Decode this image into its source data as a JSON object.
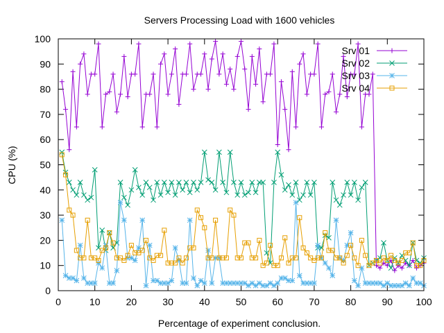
{
  "chart_data": {
    "type": "line",
    "title": "Servers Processing Load with 1600 vehicles",
    "xlabel": "Percentage of experiment conclusion.",
    "ylabel": "CPU (%)",
    "xlim": [
      0,
      100
    ],
    "ylim": [
      0,
      100
    ],
    "xticks": [
      0,
      10,
      20,
      30,
      40,
      50,
      60,
      70,
      80,
      90,
      100
    ],
    "yticks": [
      0,
      10,
      20,
      30,
      40,
      50,
      60,
      70,
      80,
      90,
      100
    ],
    "grid": false,
    "legend_position": "top-right",
    "series": [
      {
        "name": "Srv 01",
        "color": "#9400d3",
        "marker": "plus",
        "x": [
          1,
          2,
          3,
          4,
          5,
          6,
          7,
          8,
          9,
          10,
          11,
          12,
          13,
          14,
          15,
          16,
          17,
          18,
          19,
          20,
          21,
          22,
          23,
          24,
          25,
          26,
          27,
          28,
          29,
          30,
          31,
          32,
          33,
          34,
          35,
          36,
          37,
          38,
          39,
          40,
          41,
          42,
          43,
          44,
          45,
          46,
          47,
          48,
          49,
          50,
          51,
          52,
          53,
          54,
          55,
          56,
          57,
          58,
          59,
          60,
          61,
          62,
          63,
          64,
          65,
          66,
          67,
          68,
          69,
          70,
          71,
          72,
          73,
          74,
          75,
          76,
          77,
          78,
          79,
          80,
          81,
          82,
          83,
          84,
          85,
          86,
          87,
          88,
          89,
          90,
          91,
          92,
          93,
          94,
          95,
          96,
          97,
          98,
          99,
          100
        ],
        "y": [
          83,
          72,
          56,
          87,
          65,
          90,
          94,
          78,
          86,
          86,
          98,
          65,
          78,
          79,
          86,
          71,
          78,
          93,
          77,
          86,
          86,
          98,
          65,
          78,
          78,
          86,
          65,
          90,
          94,
          78,
          86,
          96,
          74,
          86,
          86,
          98,
          80,
          86,
          86,
          94,
          80,
          92,
          99,
          86,
          94,
          82,
          88,
          80,
          93,
          99,
          88,
          72,
          93,
          82,
          96,
          75,
          86,
          86,
          98,
          58,
          83,
          72,
          56,
          87,
          65,
          90,
          94,
          78,
          86,
          86,
          98,
          65,
          78,
          79,
          86,
          71,
          78,
          93,
          77,
          86,
          86,
          98,
          65,
          78,
          78,
          86,
          10,
          9,
          11,
          10,
          12,
          8,
          10,
          9,
          11,
          10,
          12,
          9,
          10,
          11
        ]
      },
      {
        "name": "Srv 02",
        "color": "#009e73",
        "marker": "x",
        "x": [
          1,
          2,
          3,
          4,
          5,
          6,
          7,
          8,
          9,
          10,
          11,
          12,
          13,
          14,
          15,
          16,
          17,
          18,
          19,
          20,
          21,
          22,
          23,
          24,
          25,
          26,
          27,
          28,
          29,
          30,
          31,
          32,
          33,
          34,
          35,
          36,
          37,
          38,
          39,
          40,
          41,
          42,
          43,
          44,
          45,
          46,
          47,
          48,
          49,
          50,
          51,
          52,
          53,
          54,
          55,
          56,
          57,
          58,
          59,
          60,
          61,
          62,
          63,
          64,
          65,
          66,
          67,
          68,
          69,
          70,
          71,
          72,
          73,
          74,
          75,
          76,
          77,
          78,
          79,
          80,
          81,
          82,
          83,
          84,
          85,
          86,
          87,
          88,
          89,
          90,
          91,
          92,
          93,
          94,
          95,
          96,
          97,
          98,
          99,
          100
        ],
        "y": [
          55,
          47,
          43,
          40,
          38,
          43,
          38,
          36,
          37,
          48,
          17,
          24,
          16,
          23,
          17,
          19,
          43,
          37,
          34,
          40,
          48,
          41,
          38,
          43,
          41,
          36,
          43,
          38,
          43,
          39,
          43,
          38,
          43,
          40,
          43,
          39,
          43,
          40,
          43,
          55,
          44,
          43,
          40,
          55,
          43,
          39,
          55,
          43,
          38,
          43,
          38,
          39,
          43,
          39,
          43,
          43,
          15,
          11,
          43,
          55,
          46,
          40,
          42,
          38,
          43,
          36,
          38,
          43,
          38,
          43,
          17,
          17,
          22,
          21,
          43,
          36,
          34,
          38,
          43,
          38,
          43,
          36,
          41,
          43,
          10,
          11,
          12,
          13,
          19,
          12,
          9,
          13,
          11,
          14,
          12,
          10,
          19,
          12,
          11,
          13
        ]
      },
      {
        "name": "Srv 03",
        "color": "#56b4e9",
        "marker": "star",
        "x": [
          1,
          2,
          3,
          4,
          5,
          6,
          7,
          8,
          9,
          10,
          11,
          12,
          13,
          14,
          15,
          16,
          17,
          18,
          19,
          20,
          21,
          22,
          23,
          24,
          25,
          26,
          27,
          28,
          29,
          30,
          31,
          32,
          33,
          34,
          35,
          36,
          37,
          38,
          39,
          40,
          41,
          42,
          43,
          44,
          45,
          46,
          47,
          48,
          49,
          50,
          51,
          52,
          53,
          54,
          55,
          56,
          57,
          58,
          59,
          60,
          61,
          62,
          63,
          64,
          65,
          66,
          67,
          68,
          69,
          70,
          71,
          72,
          73,
          74,
          75,
          76,
          77,
          78,
          79,
          80,
          81,
          82,
          83,
          84,
          85,
          86,
          87,
          88,
          89,
          90,
          91,
          92,
          93,
          94,
          95,
          96,
          97,
          98,
          99,
          100
        ],
        "y": [
          28,
          6,
          5,
          5,
          4,
          18,
          5,
          3,
          3,
          3,
          11,
          9,
          18,
          3,
          3,
          8,
          35,
          28,
          13,
          13,
          12,
          17,
          28,
          2,
          18,
          4,
          4,
          3,
          3,
          3,
          4,
          17,
          12,
          3,
          3,
          28,
          5,
          2,
          4,
          3,
          16,
          3,
          13,
          13,
          3,
          3,
          3,
          3,
          3,
          3,
          3,
          2,
          3,
          2,
          3,
          2,
          2,
          3,
          2,
          3,
          5,
          5,
          4,
          4,
          35,
          6,
          3,
          3,
          3,
          3,
          18,
          13,
          11,
          9,
          6,
          28,
          13,
          12,
          18,
          23,
          4,
          2,
          9,
          3,
          3,
          3,
          3,
          3,
          2,
          3,
          2,
          2,
          2,
          2,
          3,
          2,
          5,
          3,
          3,
          2
        ]
      },
      {
        "name": "Srv 04",
        "color": "#e69f00",
        "marker": "square",
        "x": [
          1,
          2,
          3,
          4,
          5,
          6,
          7,
          8,
          9,
          10,
          11,
          12,
          13,
          14,
          15,
          16,
          17,
          18,
          19,
          20,
          21,
          22,
          23,
          24,
          25,
          26,
          27,
          28,
          29,
          30,
          31,
          32,
          33,
          34,
          35,
          36,
          37,
          38,
          39,
          40,
          41,
          42,
          43,
          44,
          45,
          46,
          47,
          48,
          49,
          50,
          51,
          52,
          53,
          54,
          55,
          56,
          57,
          58,
          59,
          60,
          61,
          62,
          63,
          64,
          65,
          66,
          67,
          68,
          69,
          70,
          71,
          72,
          73,
          74,
          75,
          76,
          77,
          78,
          79,
          80,
          81,
          82,
          83,
          84,
          85,
          86,
          87,
          88,
          89,
          90,
          91,
          92,
          93,
          94,
          95,
          96,
          97,
          98,
          99,
          100
        ],
        "y": [
          54,
          46,
          32,
          30,
          16,
          13,
          13,
          28,
          13,
          13,
          12,
          16,
          17,
          23,
          19,
          13,
          13,
          12,
          14,
          18,
          15,
          15,
          16,
          20,
          13,
          12,
          14,
          14,
          24,
          11,
          11,
          11,
          13,
          11,
          13,
          17,
          17,
          32,
          29,
          25,
          13,
          13,
          28,
          13,
          13,
          13,
          32,
          30,
          13,
          13,
          19,
          19,
          13,
          13,
          20,
          10,
          11,
          18,
          10,
          10,
          13,
          21,
          11,
          13,
          13,
          29,
          17,
          15,
          13,
          12,
          13,
          13,
          23,
          16,
          16,
          13,
          13,
          11,
          14,
          18,
          13,
          10,
          20,
          14,
          10,
          11,
          12,
          11,
          13,
          12,
          14,
          12,
          11,
          12,
          15,
          15,
          19,
          10,
          10,
          12
        ]
      }
    ]
  }
}
